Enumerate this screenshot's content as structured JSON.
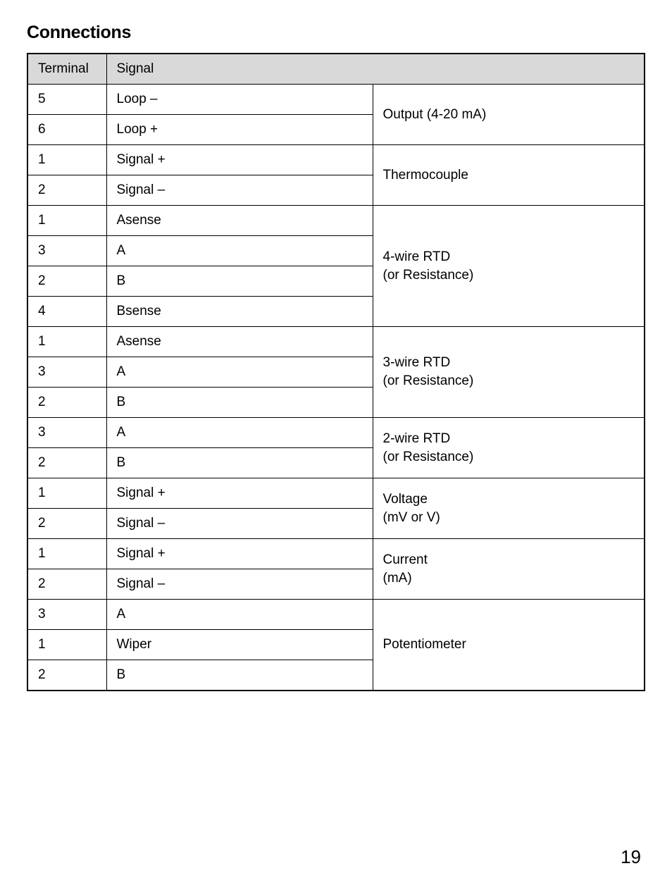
{
  "title": "Connections",
  "page_number": "19",
  "columns": {
    "terminal": "Terminal",
    "signal": "Signal"
  },
  "groups": [
    {
      "desc": "Output (4-20 mA)",
      "rows": [
        {
          "terminal": "5",
          "signal": "Loop –"
        },
        {
          "terminal": "6",
          "signal": "Loop +"
        }
      ]
    },
    {
      "desc": "Thermocouple",
      "rows": [
        {
          "terminal": "1",
          "signal": "Signal +"
        },
        {
          "terminal": "2",
          "signal": "Signal –"
        }
      ]
    },
    {
      "desc": "4-wire RTD\n(or Resistance)",
      "rows": [
        {
          "terminal": "1",
          "signal": "Asense"
        },
        {
          "terminal": "3",
          "signal": "A"
        },
        {
          "terminal": "2",
          "signal": "B"
        },
        {
          "terminal": "4",
          "signal": "Bsense"
        }
      ]
    },
    {
      "desc": "3-wire RTD\n(or Resistance)",
      "rows": [
        {
          "terminal": "1",
          "signal": "Asense"
        },
        {
          "terminal": "3",
          "signal": "A"
        },
        {
          "terminal": "2",
          "signal": "B"
        }
      ]
    },
    {
      "desc": "2-wire RTD\n(or Resistance)",
      "rows": [
        {
          "terminal": "3",
          "signal": "A"
        },
        {
          "terminal": "2",
          "signal": "B"
        }
      ]
    },
    {
      "desc": "Voltage\n(mV or V)",
      "rows": [
        {
          "terminal": "1",
          "signal": "Signal +"
        },
        {
          "terminal": "2",
          "signal": "Signal –"
        }
      ]
    },
    {
      "desc": "Current\n(mA)",
      "rows": [
        {
          "terminal": "1",
          "signal": "Signal +"
        },
        {
          "terminal": "2",
          "signal": "Signal –"
        }
      ]
    },
    {
      "desc": "Potentiometer",
      "rows": [
        {
          "terminal": "3",
          "signal": "A"
        },
        {
          "terminal": "1",
          "signal": "Wiper"
        },
        {
          "terminal": "2",
          "signal": "B"
        }
      ]
    }
  ]
}
